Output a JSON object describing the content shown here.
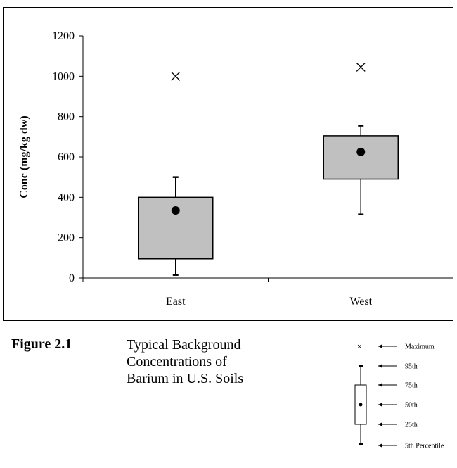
{
  "chart_data": {
    "type": "box",
    "title": "",
    "xlabel": "",
    "ylabel": "Conc (mg/kg dw)",
    "ylim": [
      0,
      1200
    ],
    "yticks": [
      "0",
      "200",
      "400",
      "600",
      "800",
      "1000",
      "1200"
    ],
    "grid": false,
    "categories": [
      "East",
      "West"
    ],
    "boxes": [
      {
        "category": "East",
        "p5": 15,
        "p25": 95,
        "p50": 335,
        "p75": 400,
        "p95": 500,
        "max": 1000
      },
      {
        "category": "West",
        "p5": 315,
        "p25": 490,
        "p50": 625,
        "p75": 705,
        "p95": 755,
        "max": 1045
      }
    ],
    "colors": {
      "box_fill": "#c0c0c0",
      "stroke": "#000000"
    }
  },
  "figure": {
    "label": "Figure 2.1",
    "caption_lines": [
      "Typical Background",
      "Concentrations of",
      "Barium in U.S. Soils"
    ]
  },
  "legend": {
    "items": [
      "Maximum",
      "95th",
      "75th",
      "50th",
      "25th",
      "5th Percentile"
    ]
  }
}
